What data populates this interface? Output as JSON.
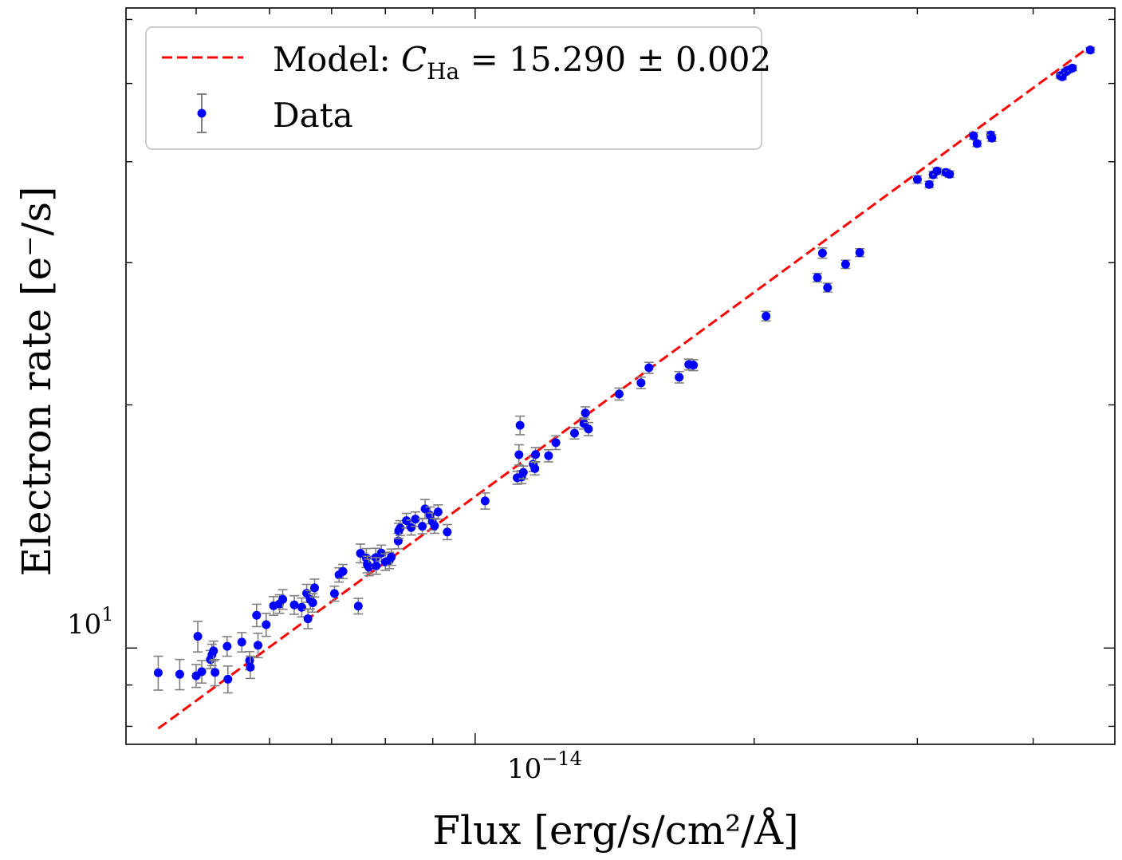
{
  "chart_data": {
    "type": "scatter",
    "xscale": "log",
    "yscale": "log",
    "xlabel": "Flux [erg/s/cm²/Å]",
    "ylabel": "Electron rate [e⁻/s]",
    "xlim": [
      4.2e-15,
      4.9e-14
    ],
    "ylim": [
      7.6,
      62
    ],
    "xtick_major": {
      "value": 1e-14,
      "label": "10",
      "sup": "−14"
    },
    "ytick_major": {
      "value": 10,
      "label": "10",
      "sup": "1"
    },
    "grid": false,
    "legend": {
      "placement": "top-left",
      "model_label": "Model: ",
      "model_c": "C",
      "model_sub": "Ha",
      "model_eq": " = 15.290 ± 0.002",
      "data_label": "Data"
    },
    "colors": {
      "model": "#ff0000",
      "data": "#0000ff",
      "errorbar": "#808080"
    },
    "series": [
      {
        "name": "Model: C_Ha = 15.290 ± 0.002",
        "kind": "line",
        "style": "dashed",
        "x": [
          4.55e-15,
          4.61e-14
        ],
        "y": [
          7.95,
          55.6
        ]
      },
      {
        "name": "Data",
        "kind": "errorbar",
        "points": [
          {
            "x": 4.55e-15,
            "y": 9.32,
            "e": 0.45
          },
          {
            "x": 4.8e-15,
            "y": 9.28,
            "e": 0.4
          },
          {
            "x": 5e-15,
            "y": 9.24,
            "e": 0.3
          },
          {
            "x": 5.02e-15,
            "y": 10.34,
            "e": 0.45
          },
          {
            "x": 5.07e-15,
            "y": 9.35,
            "e": 0.3
          },
          {
            "x": 5.18e-15,
            "y": 9.68,
            "e": 0.25
          },
          {
            "x": 5.2e-15,
            "y": 9.81,
            "e": 0.3
          },
          {
            "x": 5.22e-15,
            "y": 9.92,
            "e": 0.28
          },
          {
            "x": 5.24e-15,
            "y": 9.33,
            "e": 0.35
          },
          {
            "x": 5.4e-15,
            "y": 10.05,
            "e": 0.28
          },
          {
            "x": 5.41e-15,
            "y": 9.15,
            "e": 0.35
          },
          {
            "x": 5.6e-15,
            "y": 10.17,
            "e": 0.28
          },
          {
            "x": 5.71e-15,
            "y": 9.65,
            "e": 0.25
          },
          {
            "x": 5.72e-15,
            "y": 9.47,
            "e": 0.3
          },
          {
            "x": 5.81e-15,
            "y": 10.98,
            "e": 0.35
          },
          {
            "x": 5.83e-15,
            "y": 10.08,
            "e": 0.35
          },
          {
            "x": 5.95e-15,
            "y": 10.69,
            "e": 0.35
          },
          {
            "x": 6.06e-15,
            "y": 11.28,
            "e": 0.3
          },
          {
            "x": 6.15e-15,
            "y": 11.34,
            "e": 0.3
          },
          {
            "x": 6.2e-15,
            "y": 11.49,
            "e": 0.32
          },
          {
            "x": 6.38e-15,
            "y": 11.31,
            "e": 0.3
          },
          {
            "x": 6.5e-15,
            "y": 11.23,
            "e": 0.3
          },
          {
            "x": 6.58e-15,
            "y": 11.69,
            "e": 0.3
          },
          {
            "x": 6.6e-15,
            "y": 10.87,
            "e": 0.3
          },
          {
            "x": 6.64e-15,
            "y": 11.48,
            "e": 0.3
          },
          {
            "x": 6.68e-15,
            "y": 11.38,
            "e": 0.3
          },
          {
            "x": 6.71e-15,
            "y": 11.87,
            "e": 0.3
          },
          {
            "x": 7.05e-15,
            "y": 11.68,
            "e": 0.25
          },
          {
            "x": 7.13e-15,
            "y": 12.32,
            "e": 0.25
          },
          {
            "x": 7.2e-15,
            "y": 12.44,
            "e": 0.25
          },
          {
            "x": 7.48e-15,
            "y": 11.27,
            "e": 0.25
          },
          {
            "x": 7.52e-15,
            "y": 13.1,
            "e": 0.35
          },
          {
            "x": 7.63e-15,
            "y": 12.93,
            "e": 0.35
          },
          {
            "x": 7.65e-15,
            "y": 12.69,
            "e": 0.3
          },
          {
            "x": 7.68e-15,
            "y": 12.59,
            "e": 0.3
          },
          {
            "x": 7.81e-15,
            "y": 12.94,
            "e": 0.35
          },
          {
            "x": 7.82e-15,
            "y": 12.64,
            "e": 0.3
          },
          {
            "x": 7.92e-15,
            "y": 13.11,
            "e": 0.3
          },
          {
            "x": 8e-15,
            "y": 12.78,
            "e": 0.3
          },
          {
            "x": 8.08e-15,
            "y": 12.84,
            "e": 0.3
          },
          {
            "x": 8.12e-15,
            "y": 12.96,
            "e": 0.3
          },
          {
            "x": 8.26e-15,
            "y": 13.57,
            "e": 0.3
          },
          {
            "x": 8.27e-15,
            "y": 13.97,
            "e": 0.3
          },
          {
            "x": 8.3e-15,
            "y": 14.08,
            "e": 0.3
          },
          {
            "x": 8.43e-15,
            "y": 14.38,
            "e": 0.3
          },
          {
            "x": 8.53e-15,
            "y": 14.1,
            "e": 0.3
          },
          {
            "x": 8.62e-15,
            "y": 14.44,
            "e": 0.3
          },
          {
            "x": 8.77e-15,
            "y": 14.15,
            "e": 0.3
          },
          {
            "x": 8.83e-15,
            "y": 14.87,
            "e": 0.4
          },
          {
            "x": 8.94e-15,
            "y": 14.6,
            "e": 0.35
          },
          {
            "x": 8.99e-15,
            "y": 14.35,
            "e": 0.35
          },
          {
            "x": 9.04e-15,
            "y": 14.17,
            "e": 0.3
          },
          {
            "x": 9.12e-15,
            "y": 14.74,
            "e": 0.3
          },
          {
            "x": 9.33e-15,
            "y": 13.92,
            "e": 0.3
          },
          {
            "x": 1.025e-14,
            "y": 15.21,
            "e": 0.35
          },
          {
            "x": 1.11e-14,
            "y": 16.25,
            "e": 0.3
          },
          {
            "x": 1.115e-14,
            "y": 17.35,
            "e": 0.5
          },
          {
            "x": 1.118e-14,
            "y": 18.87,
            "e": 0.5
          },
          {
            "x": 1.122e-14,
            "y": 16.28,
            "e": 0.3
          },
          {
            "x": 1.127e-14,
            "y": 16.5,
            "e": 0.3
          },
          {
            "x": 1.155e-14,
            "y": 16.89,
            "e": 0.35
          },
          {
            "x": 1.16e-14,
            "y": 16.68,
            "e": 0.3
          },
          {
            "x": 1.162e-14,
            "y": 17.36,
            "e": 0.35
          },
          {
            "x": 1.2e-14,
            "y": 17.3,
            "e": 0.3
          },
          {
            "x": 1.222e-14,
            "y": 17.96,
            "e": 0.35
          },
          {
            "x": 1.28e-14,
            "y": 18.45,
            "e": 0.3
          },
          {
            "x": 1.31e-14,
            "y": 18.97,
            "e": 0.3
          },
          {
            "x": 1.315e-14,
            "y": 19.54,
            "e": 0.35
          },
          {
            "x": 1.325e-14,
            "y": 18.67,
            "e": 0.35
          },
          {
            "x": 1.43e-14,
            "y": 20.63,
            "e": 0.35
          },
          {
            "x": 1.51e-14,
            "y": 21.3,
            "e": 0.35
          },
          {
            "x": 1.54e-14,
            "y": 22.23,
            "e": 0.35
          },
          {
            "x": 1.66e-14,
            "y": 21.64,
            "e": 0.35
          },
          {
            "x": 1.7e-14,
            "y": 22.44,
            "e": 0.35
          },
          {
            "x": 1.72e-14,
            "y": 22.4,
            "e": 0.35
          },
          {
            "x": 2.06e-14,
            "y": 25.76,
            "e": 0.35
          },
          {
            "x": 2.34e-14,
            "y": 28.75,
            "e": 0.35
          },
          {
            "x": 2.37e-14,
            "y": 30.83,
            "e": 0.45
          },
          {
            "x": 2.4e-14,
            "y": 27.94,
            "e": 0.35
          },
          {
            "x": 2.51e-14,
            "y": 29.86,
            "e": 0.35
          },
          {
            "x": 2.6e-14,
            "y": 30.87,
            "e": 0.35
          },
          {
            "x": 3e-14,
            "y": 38.03,
            "e": 0.4
          },
          {
            "x": 3.09e-14,
            "y": 37.49,
            "e": 0.35
          },
          {
            "x": 3.12e-14,
            "y": 38.54,
            "e": 0.35
          },
          {
            "x": 3.15e-14,
            "y": 38.95,
            "e": 0.35
          },
          {
            "x": 3.22e-14,
            "y": 38.8,
            "e": 0.35
          },
          {
            "x": 3.25e-14,
            "y": 38.6,
            "e": 0.35
          },
          {
            "x": 3.45e-14,
            "y": 43.06,
            "e": 0.4
          },
          {
            "x": 3.48e-14,
            "y": 42.12,
            "e": 0.35
          },
          {
            "x": 3.6e-14,
            "y": 43.18,
            "e": 0.4
          },
          {
            "x": 3.61e-14,
            "y": 42.79,
            "e": 0.4
          },
          {
            "x": 4.28e-14,
            "y": 51.13,
            "e": 0.4
          },
          {
            "x": 4.3e-14,
            "y": 50.96,
            "e": 0.4
          },
          {
            "x": 4.33e-14,
            "y": 51.64,
            "e": 0.4
          },
          {
            "x": 4.36e-14,
            "y": 51.93,
            "e": 0.4
          },
          {
            "x": 4.41e-14,
            "y": 52.24,
            "e": 0.4
          },
          {
            "x": 4.61e-14,
            "y": 55.0,
            "e": 0.4
          }
        ]
      }
    ]
  }
}
